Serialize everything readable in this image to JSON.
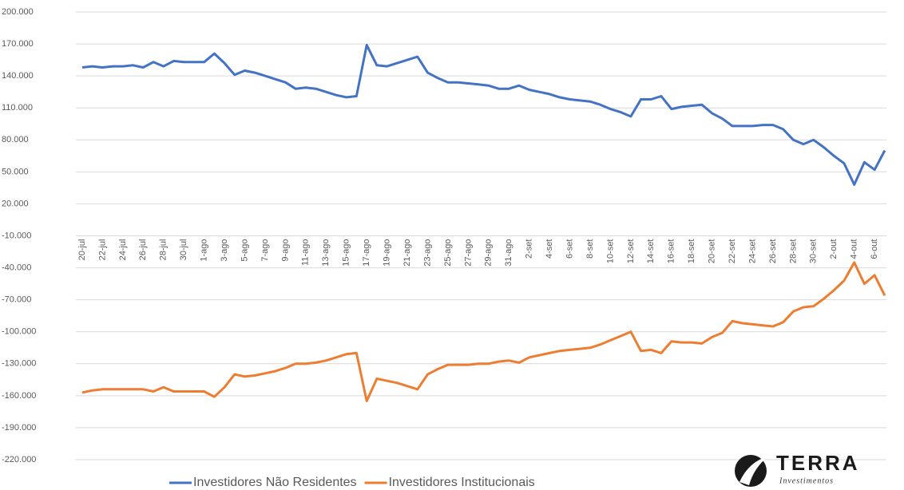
{
  "chart_data": {
    "type": "line",
    "categories": [
      "20-jul",
      null,
      "22-jul",
      null,
      "24-jul",
      null,
      "26-jul",
      null,
      "28-jul",
      null,
      "30-jul",
      null,
      "1-ago",
      null,
      "3-ago",
      null,
      "5-ago",
      null,
      "7-ago",
      null,
      "9-ago",
      null,
      "11-ago",
      null,
      "13-ago",
      null,
      "15-ago",
      null,
      "17-ago",
      null,
      "19-ago",
      null,
      "21-ago",
      null,
      "23-ago",
      null,
      "25-ago",
      null,
      "27-ago",
      null,
      "29-ago",
      null,
      "31-ago",
      null,
      "2-set",
      null,
      "4-set",
      null,
      "6-set",
      null,
      "8-set",
      null,
      "10-set",
      null,
      "12-set",
      null,
      "14-set",
      null,
      "16-set",
      null,
      "18-set",
      null,
      "20-set",
      null,
      "22-set",
      null,
      "24-set",
      null,
      "26-set",
      null,
      "28-set",
      null,
      "30-set",
      null,
      "2-out",
      null,
      "4-out",
      null,
      "6-out",
      null
    ],
    "series": [
      {
        "name": "Investidores Não Residentes",
        "color": "#4472c4",
        "values": [
          148000,
          149000,
          148000,
          149000,
          149000,
          150000,
          148000,
          153000,
          149000,
          154000,
          153000,
          153000,
          153000,
          161000,
          152000,
          141000,
          145000,
          143000,
          140000,
          137000,
          134000,
          128000,
          129000,
          128000,
          125000,
          122000,
          120000,
          121000,
          169000,
          150000,
          149000,
          152000,
          155000,
          158000,
          143000,
          138000,
          134000,
          134000,
          133000,
          132000,
          131000,
          128000,
          128000,
          131000,
          127000,
          125000,
          123000,
          120000,
          118000,
          117000,
          116000,
          113000,
          109000,
          106000,
          102000,
          118000,
          118000,
          121000,
          109000,
          111000,
          112000,
          113000,
          105000,
          100000,
          93000,
          93000,
          93000,
          94000,
          94000,
          90000,
          80000,
          76000,
          80000,
          73000,
          65000,
          58000,
          38000,
          59000,
          52000,
          70000
        ]
      },
      {
        "name": "Investidores Institucionais",
        "color": "#ed7d31",
        "values": [
          -157000,
          -155000,
          -154000,
          -154000,
          -154000,
          -154000,
          -154000,
          -156000,
          -152000,
          -156000,
          -156000,
          -156000,
          -156000,
          -161000,
          -152000,
          -140000,
          -142000,
          -141000,
          -139000,
          -137000,
          -134000,
          -130000,
          -130000,
          -129000,
          -127000,
          -124000,
          -121000,
          -120000,
          -165000,
          -144000,
          -146000,
          -148000,
          -151000,
          -154000,
          -140000,
          -135000,
          -131000,
          -131000,
          -131000,
          -130000,
          -130000,
          -128000,
          -127000,
          -129000,
          -124000,
          -122000,
          -120000,
          -118000,
          -117000,
          -116000,
          -115000,
          -112000,
          -108000,
          -104000,
          -100000,
          -118000,
          -117000,
          -120000,
          -109000,
          -110000,
          -110000,
          -111000,
          -105000,
          -101000,
          -90000,
          -92000,
          -93000,
          -94000,
          -95000,
          -91000,
          -81000,
          -77000,
          -76000,
          -69000,
          -61000,
          -52000,
          -35000,
          -55000,
          -47000,
          -66000
        ]
      }
    ],
    "ylim": [
      -220000,
      200000
    ],
    "yticks": [
      {
        "value": 200000,
        "label": "200.000"
      },
      {
        "value": 170000,
        "label": "170.000"
      },
      {
        "value": 140000,
        "label": "140.000"
      },
      {
        "value": 110000,
        "label": "110.000"
      },
      {
        "value": 80000,
        "label": "80.000"
      },
      {
        "value": 50000,
        "label": "50.000"
      },
      {
        "value": 20000,
        "label": "20.000"
      },
      {
        "value": -10000,
        "label": "-10.000"
      },
      {
        "value": -40000,
        "label": "-40.000"
      },
      {
        "value": -70000,
        "label": "-70.000"
      },
      {
        "value": -100000,
        "label": "-100.000"
      },
      {
        "value": -130000,
        "label": "-130.000"
      },
      {
        "value": -160000,
        "label": "-160.000"
      },
      {
        "value": -190000,
        "label": "-190.000"
      },
      {
        "value": -220000,
        "label": "-220.000"
      }
    ],
    "grid": true,
    "legend": "bottom"
  },
  "logo": {
    "name": "TERRA",
    "tagline": "Investimentos"
  }
}
